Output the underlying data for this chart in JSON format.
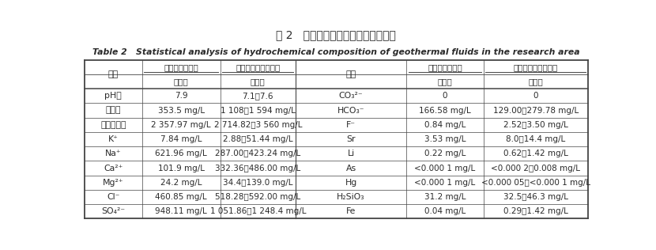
{
  "title_cn": "表 2   研究区地热流体水化学成分统计",
  "title_en": "Table 2   Statistical analysis of hydrochemical composition of geothermal fluids in the research area",
  "left_rows": [
    [
      "pH値",
      "7.9",
      "7.1～7.6"
    ],
    [
      "总硬度",
      "353.5 mg/L",
      "1 108～1 594 mg/L"
    ],
    [
      "溶解总固体",
      "2 357.97 mg/L",
      "2 714.82～3 560 mg/L"
    ],
    [
      "K⁺",
      "7.84 mg/L",
      "2.88～51.44 mg/L"
    ],
    [
      "Na⁺",
      "621.96 mg/L",
      "287.00～423.24 mg/L"
    ],
    [
      "Ca²⁺",
      "101.9 mg/L",
      "332.36～486.00 mg/L"
    ],
    [
      "Mg²⁺",
      "24.2 mg/L",
      "34.4～139.0 mg/L"
    ],
    [
      "Cl⁻",
      "460.85 mg/L",
      "518.28～592.00 mg/L"
    ],
    [
      "SO₄²⁻",
      "948.11 mg/L",
      "1 051.86～1 248.4 mg/L"
    ]
  ],
  "right_rows": [
    [
      "CO₃²⁻",
      "0",
      "0"
    ],
    [
      "HCO₃⁻",
      "166.58 mg/L",
      "129.00～279.78 mg/L"
    ],
    [
      "F⁻",
      "0.84 mg/L",
      "2.52～3.50 mg/L"
    ],
    [
      "Sr",
      "3.53 mg/L",
      "8.0～14.4 mg/L"
    ],
    [
      "Li",
      "0.22 mg/L",
      "0.62～1.42 mg/L"
    ],
    [
      "As",
      "<0.000 1 mg/L",
      "<0.000 2～0.008 mg/L"
    ],
    [
      "Hg",
      "<0.000 1 mg/L",
      "<0.000 05～<0.000 1 mg/L"
    ],
    [
      "H₂SiO₃",
      "31.2 mg/L",
      "32.5～46.3 mg/L"
    ],
    [
      "Fe",
      "0.04 mg/L",
      "0.29～1.42 mg/L"
    ]
  ],
  "header_xinsheng_left": "新生界砂岩热储",
  "header_gusheng_left": "古生界碳酸盐岩热储",
  "header_xinsheng_right": "新生界砂岩热储",
  "header_gusheng_right": "古生界碳酸盐岩热储",
  "header_item": "项目",
  "sub_header": "范围値",
  "bg_color": "#ffffff",
  "text_color": "#2a2a2a",
  "line_color": "#444444"
}
